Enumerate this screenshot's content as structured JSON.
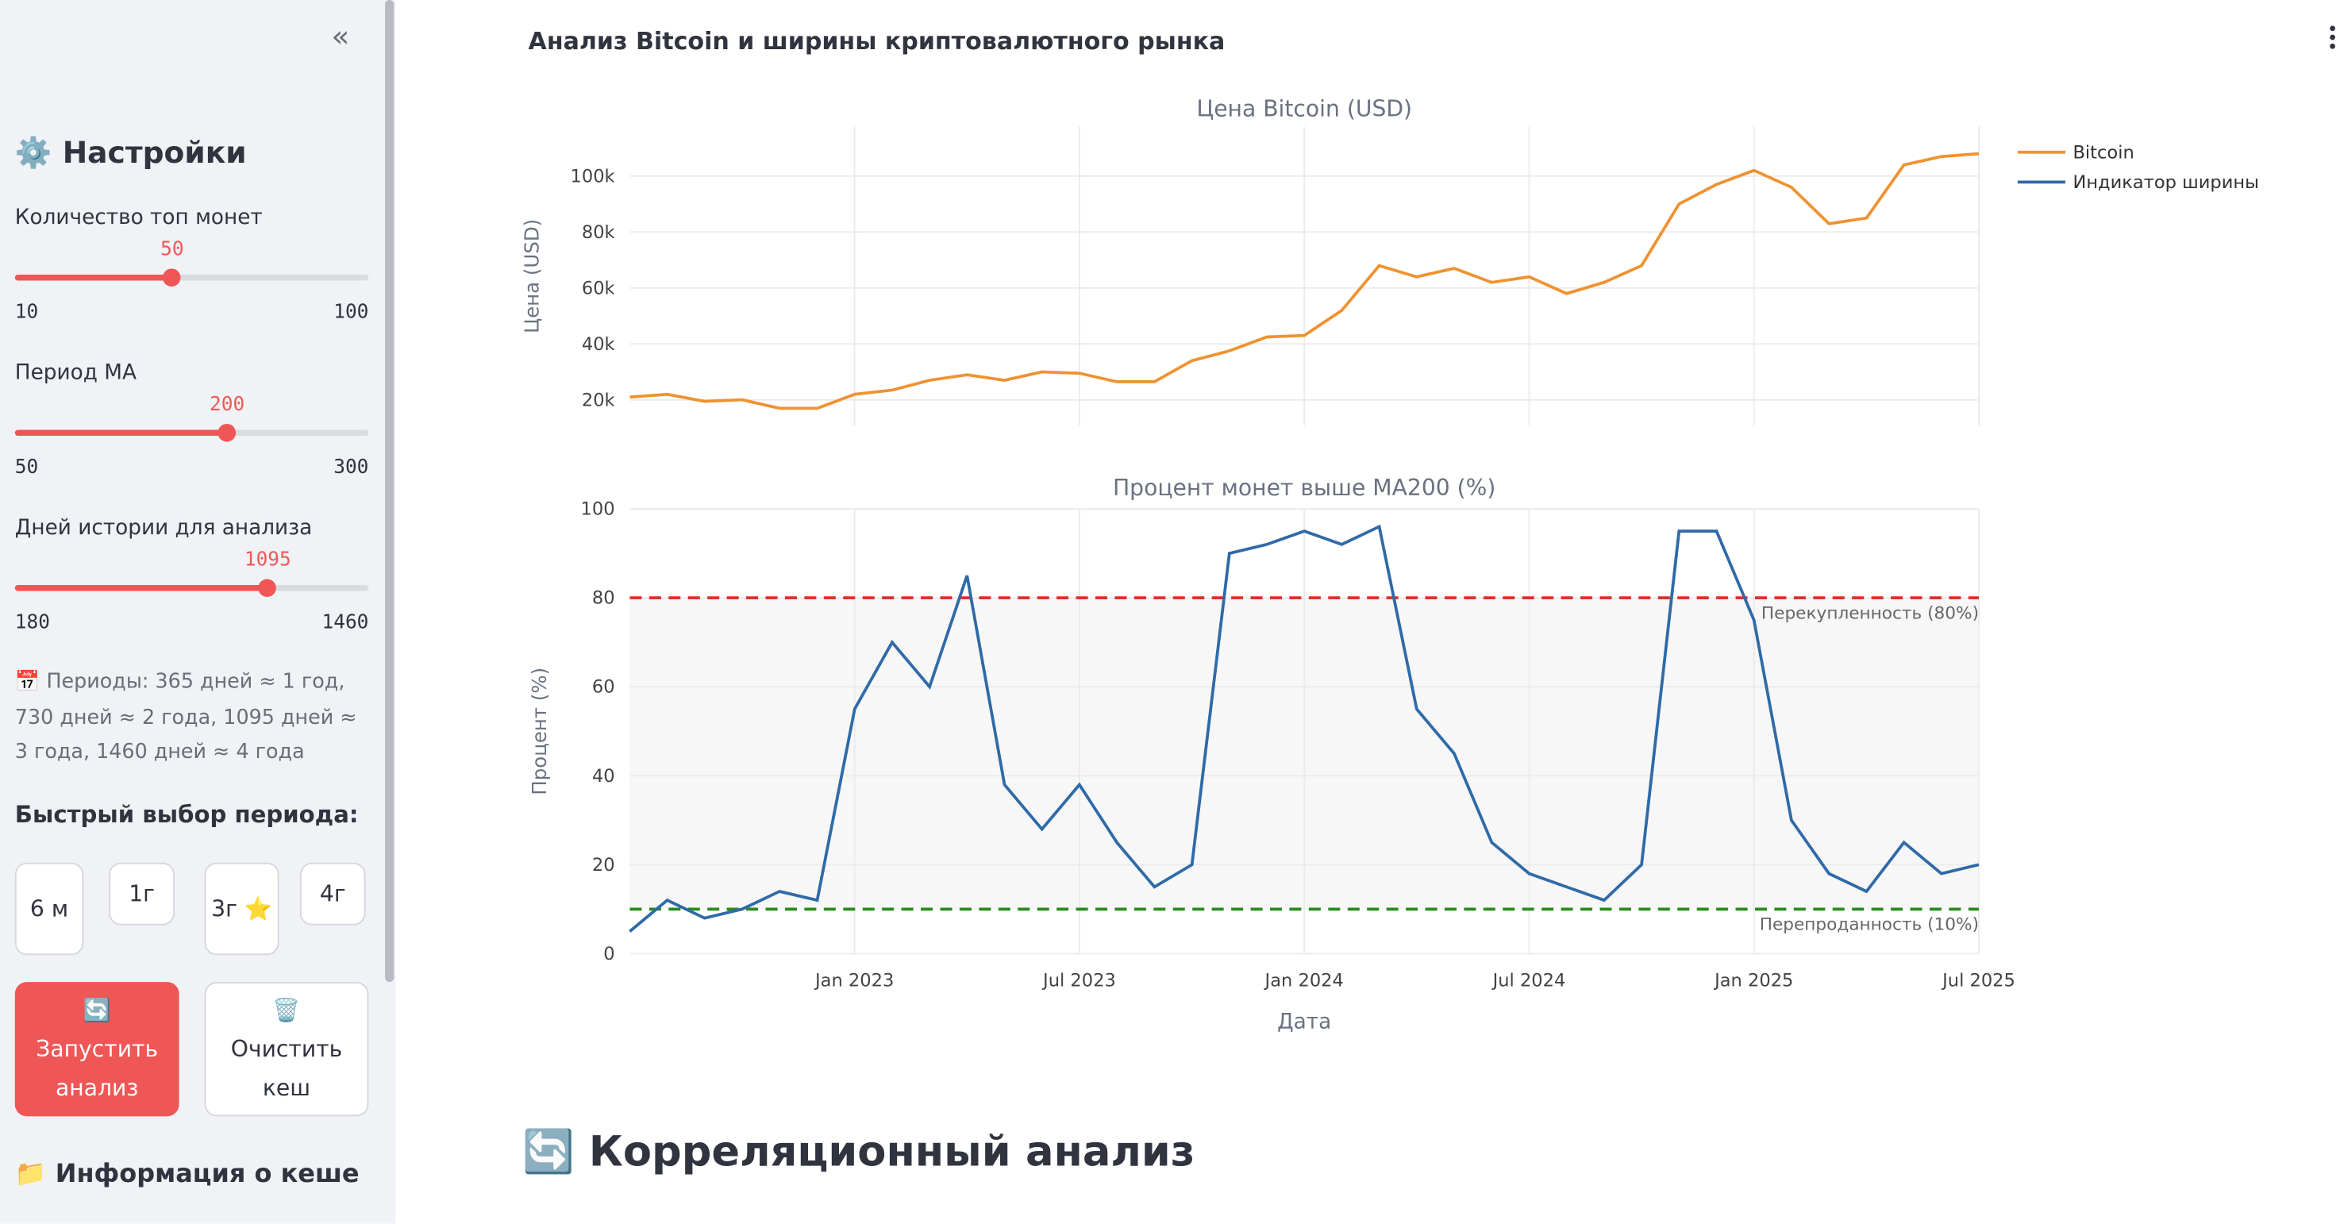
{
  "header": "Анализ Bitcoin и ширины криптовалютного рынка",
  "section": "🔄 Корреляционный анализ",
  "sidebar": {
    "title": "⚙️ Настройки",
    "sliders": [
      {
        "label": "Количество топ монет",
        "value": 50,
        "min": 10,
        "max": 100
      },
      {
        "label": "Период MA",
        "value": 200,
        "min": 50,
        "max": 300
      },
      {
        "label": "Дней истории для анализа",
        "value": 1095,
        "min": 180,
        "max": 1460
      }
    ],
    "note": "📅 Периоды: 365 дней ≈ 1 год, 730 дней ≈ 2 года, 1095 дней ≈ 3 года, 1460 дней ≈ 4 года",
    "quick_title": "Быстрый выбор периода:",
    "quick_buttons": [
      "6 м",
      "1г",
      "3г ⭐",
      "4г"
    ],
    "run_button": {
      "icon": "🔄",
      "text": "Запустить анализ"
    },
    "clear_button": {
      "icon": "🗑️",
      "text": "Очистить кеш"
    },
    "cache_title": "📁 Информация о кеше"
  },
  "chart_data": [
    {
      "type": "line",
      "title": "Цена Bitcoin (USD)",
      "y_label": "Цена (USD)",
      "x": [
        "2022-07",
        "2022-08",
        "2022-09",
        "2022-10",
        "2022-11",
        "2022-12",
        "2023-01",
        "2023-02",
        "2023-03",
        "2023-04",
        "2023-05",
        "2023-06",
        "2023-07",
        "2023-08",
        "2023-09",
        "2023-10",
        "2023-11",
        "2023-12",
        "2024-01",
        "2024-02",
        "2024-03",
        "2024-04",
        "2024-05",
        "2024-06",
        "2024-07",
        "2024-08",
        "2024-09",
        "2024-10",
        "2024-11",
        "2024-12",
        "2025-01",
        "2025-02",
        "2025-03",
        "2025-04",
        "2025-05",
        "2025-06",
        "2025-07"
      ],
      "series": [
        {
          "name": "Bitcoin",
          "color": "#ef9231",
          "values": [
            21000,
            22000,
            19500,
            20000,
            17000,
            17000,
            22000,
            23500,
            27000,
            29000,
            27000,
            30000,
            29500,
            26500,
            26500,
            34000,
            37500,
            42500,
            43000,
            52000,
            68000,
            64000,
            67000,
            62000,
            64000,
            58000,
            62000,
            68000,
            90000,
            97000,
            102000,
            96000,
            83000,
            85000,
            104000,
            107000,
            108000
          ]
        }
      ],
      "xlim": [
        "2022-07",
        "2025-07"
      ],
      "xticks": [
        {
          "value": "2023-01",
          "label": "Jan 2023"
        },
        {
          "value": "2023-07",
          "label": "Jul 2023"
        },
        {
          "value": "2024-01",
          "label": "Jan 2024"
        },
        {
          "value": "2024-07",
          "label": "Jul 2024"
        },
        {
          "value": "2025-01",
          "label": "Jan 2025"
        },
        {
          "value": "2025-07",
          "label": "Jul 2025"
        }
      ],
      "ylim": [
        10900,
        117600
      ],
      "yticks": [
        {
          "value": 20000,
          "label": "20k"
        },
        {
          "value": 40000,
          "label": "40k"
        },
        {
          "value": 60000,
          "label": "60k"
        },
        {
          "value": 80000,
          "label": "80k"
        },
        {
          "value": 100000,
          "label": "100k"
        }
      ],
      "grid": true
    },
    {
      "type": "line",
      "title": "Процент монет выше MA200 (%)",
      "y_label": "Процент (%)",
      "x_label": "Дата",
      "x": [
        "2022-07",
        "2022-08",
        "2022-09",
        "2022-10",
        "2022-11",
        "2022-12",
        "2023-01",
        "2023-02",
        "2023-03",
        "2023-04",
        "2023-05",
        "2023-06",
        "2023-07",
        "2023-08",
        "2023-09",
        "2023-10",
        "2023-11",
        "2023-12",
        "2024-01",
        "2024-02",
        "2024-03",
        "2024-04",
        "2024-05",
        "2024-06",
        "2024-07",
        "2024-08",
        "2024-09",
        "2024-10",
        "2024-11",
        "2024-12",
        "2025-01",
        "2025-02",
        "2025-03",
        "2025-04",
        "2025-05",
        "2025-06",
        "2025-07"
      ],
      "series": [
        {
          "name": "Индикатор ширины",
          "color": "#2f6aa8",
          "values": [
            5,
            12,
            8,
            10,
            14,
            12,
            55,
            70,
            60,
            85,
            38,
            28,
            38,
            25,
            15,
            20,
            90,
            92,
            95,
            92,
            96,
            55,
            45,
            25,
            18,
            15,
            12,
            20,
            95,
            95,
            75,
            30,
            18,
            14,
            25,
            18,
            20
          ]
        }
      ],
      "hlines": [
        {
          "value": 80,
          "label": "Перекупленность (80%)",
          "color": "#e0302b"
        },
        {
          "value": 10,
          "label": "Перепроданность (10%)",
          "color": "#2a8a1e"
        }
      ],
      "xlim": [
        "2022-07",
        "2025-07"
      ],
      "xticks": [
        {
          "value": "2023-01",
          "label": "Jan 2023"
        },
        {
          "value": "2023-07",
          "label": "Jul 2023"
        },
        {
          "value": "2024-01",
          "label": "Jan 2024"
        },
        {
          "value": "2024-07",
          "label": "Jul 2024"
        },
        {
          "value": "2025-01",
          "label": "Jan 2025"
        },
        {
          "value": "2025-07",
          "label": "Jul 2025"
        }
      ],
      "ylim": [
        0,
        100
      ],
      "yticks": [
        0,
        20,
        40,
        60,
        80,
        100
      ],
      "grid": true
    }
  ]
}
